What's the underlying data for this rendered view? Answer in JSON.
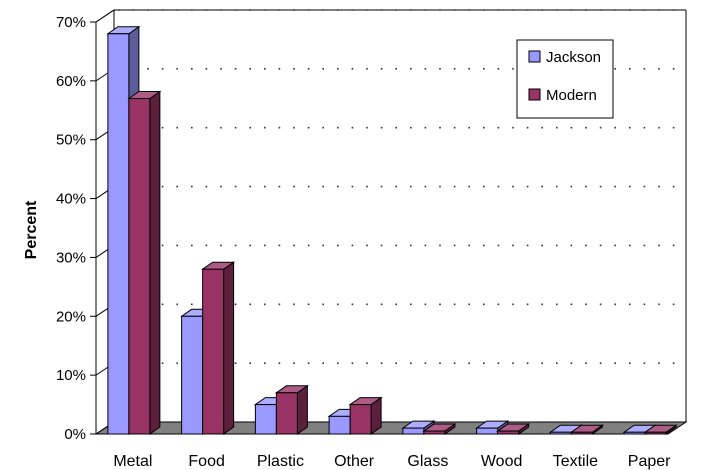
{
  "chart_data": {
    "type": "bar",
    "title": "",
    "xlabel": "",
    "ylabel": "Percent",
    "categories": [
      "Metal",
      "Food",
      "Plastic",
      "Other",
      "Glass",
      "Wood",
      "Textile",
      "Paper"
    ],
    "series": [
      {
        "name": "Jackson",
        "values": [
          68,
          20,
          5,
          3,
          1,
          1,
          0.3,
          0.3
        ],
        "color": "#9999ff"
      },
      {
        "name": "Modern",
        "values": [
          57,
          28,
          7,
          5,
          0.5,
          0.5,
          0.3,
          0.3
        ],
        "color": "#993366"
      }
    ],
    "ylim": [
      0,
      70
    ],
    "ytick_values": [
      0,
      10,
      20,
      30,
      40,
      50,
      60,
      70
    ],
    "ytick_labels": [
      "0%",
      "10%",
      "20%",
      "30%",
      "40%",
      "50%",
      "60%",
      "70%"
    ],
    "grid": true,
    "legend": "top-right",
    "style": "3d-clustered-column"
  }
}
